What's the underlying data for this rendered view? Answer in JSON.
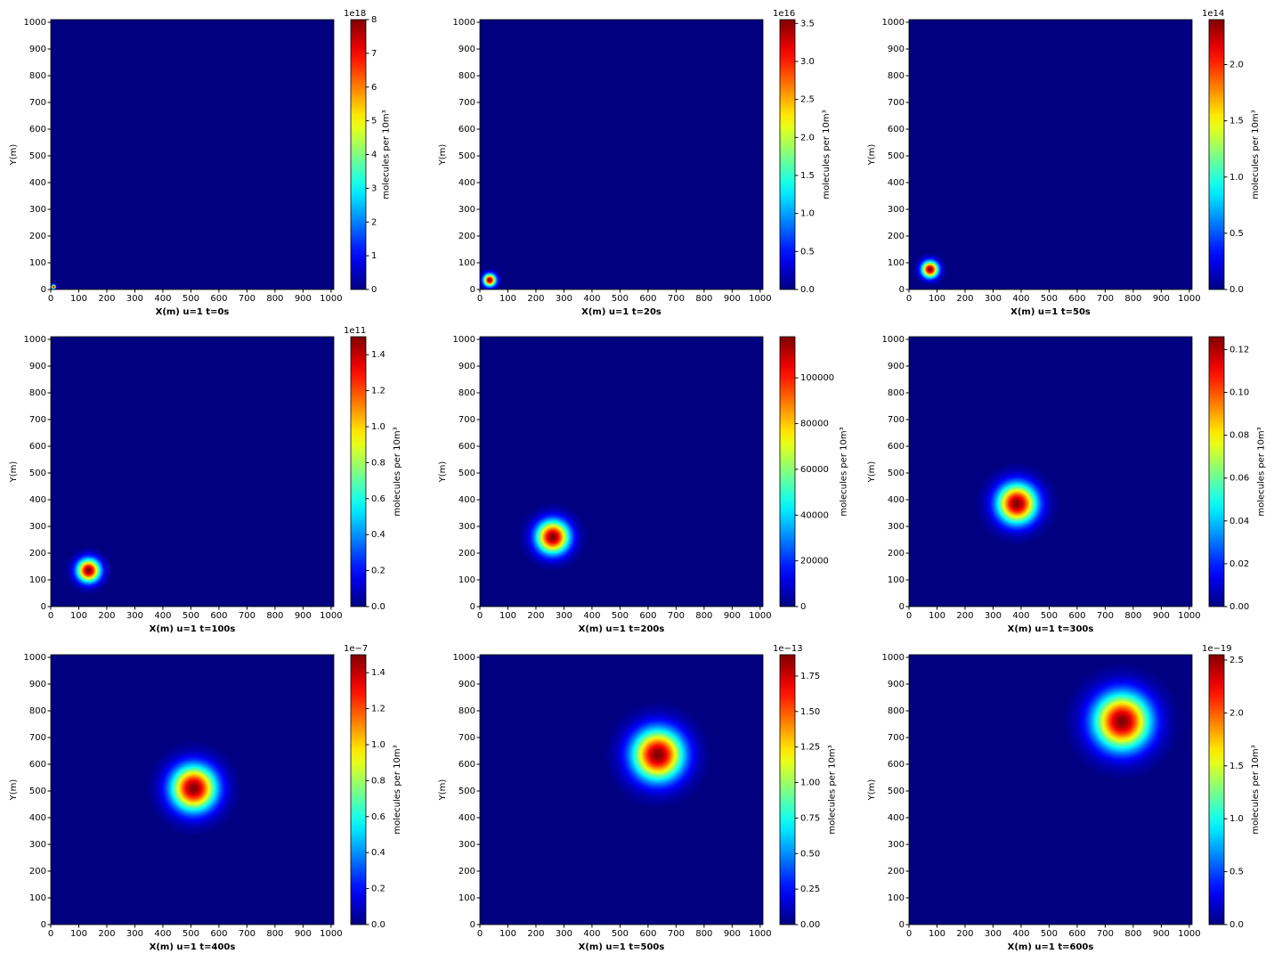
{
  "chart_data": [
    {
      "type": "heatmap",
      "xlabel": "X(m) u=1 t=0s",
      "ylabel": "Y(m)",
      "xlim": [
        0,
        1010
      ],
      "ylim": [
        0,
        1010
      ],
      "xticks": [
        0,
        100,
        200,
        300,
        400,
        500,
        600,
        700,
        800,
        900,
        1000
      ],
      "yticks": [
        0,
        100,
        200,
        300,
        400,
        500,
        600,
        700,
        800,
        900,
        1000
      ],
      "colorbar_label": "molecules per 10m³",
      "colorbar_offset": "1e18",
      "clim": [
        0,
        8
      ],
      "cticks": [
        0,
        1,
        2,
        3,
        4,
        5,
        6,
        7,
        8
      ],
      "plume": {
        "x": 10,
        "y": 10,
        "sigma": 5,
        "peak": 8
      }
    },
    {
      "type": "heatmap",
      "xlabel": "X(m) u=1 t=20s",
      "ylabel": "Y(m)",
      "xlim": [
        0,
        1010
      ],
      "ylim": [
        0,
        1010
      ],
      "xticks": [
        0,
        100,
        200,
        300,
        400,
        500,
        600,
        700,
        800,
        900,
        1000
      ],
      "yticks": [
        0,
        100,
        200,
        300,
        400,
        500,
        600,
        700,
        800,
        900,
        1000
      ],
      "colorbar_label": "molecules per 10m³",
      "colorbar_offset": "1e16",
      "clim": [
        0,
        3.55
      ],
      "cticks": [
        {
          "value": 0,
          "label": "0.0"
        },
        0.5,
        {
          "value": 1,
          "label": "1.0"
        },
        1.5,
        {
          "value": 2,
          "label": "2.0"
        },
        2.5,
        {
          "value": 3,
          "label": "3.0"
        },
        3.5
      ],
      "plume": {
        "x": 35,
        "y": 35,
        "sigma": 15,
        "peak": 3.55
      }
    },
    {
      "type": "heatmap",
      "xlabel": "X(m) u=1 t=50s",
      "ylabel": "Y(m)",
      "xlim": [
        0,
        1010
      ],
      "ylim": [
        0,
        1010
      ],
      "xticks": [
        0,
        100,
        200,
        300,
        400,
        500,
        600,
        700,
        800,
        900,
        1000
      ],
      "yticks": [
        0,
        100,
        200,
        300,
        400,
        500,
        600,
        700,
        800,
        900,
        1000
      ],
      "colorbar_label": "molecules per 10m³",
      "colorbar_offset": "1e14",
      "clim": [
        0,
        2.4
      ],
      "cticks": [
        {
          "value": 0,
          "label": "0.0"
        },
        0.5,
        {
          "value": 1,
          "label": "1.0"
        },
        1.5,
        {
          "value": 2,
          "label": "2.0"
        }
      ],
      "plume": {
        "x": 75,
        "y": 75,
        "sigma": 20,
        "peak": 2.4
      }
    },
    {
      "type": "heatmap",
      "xlabel": "X(m) u=1 t=100s",
      "ylabel": "Y(m)",
      "xlim": [
        0,
        1010
      ],
      "ylim": [
        0,
        1010
      ],
      "xticks": [
        0,
        100,
        200,
        300,
        400,
        500,
        600,
        700,
        800,
        900,
        1000
      ],
      "yticks": [
        0,
        100,
        200,
        300,
        400,
        500,
        600,
        700,
        800,
        900,
        1000
      ],
      "colorbar_label": "molecules per 10m³",
      "colorbar_offset": "1e11",
      "clim": [
        0,
        1.5
      ],
      "cticks": [
        {
          "value": 0,
          "label": "0.0"
        },
        0.2,
        0.4,
        0.6,
        0.8,
        {
          "value": 1,
          "label": "1.0"
        },
        1.2,
        1.4
      ],
      "plume": {
        "x": 135,
        "y": 135,
        "sigma": 28,
        "peak": 1.5
      }
    },
    {
      "type": "heatmap",
      "xlabel": "X(m) u=1 t=200s",
      "ylabel": "Y(m)",
      "xlim": [
        0,
        1010
      ],
      "ylim": [
        0,
        1010
      ],
      "xticks": [
        0,
        100,
        200,
        300,
        400,
        500,
        600,
        700,
        800,
        900,
        1000
      ],
      "yticks": [
        0,
        100,
        200,
        300,
        400,
        500,
        600,
        700,
        800,
        900,
        1000
      ],
      "colorbar_label": "molecules per 10m³",
      "clim": [
        0,
        118000
      ],
      "cticks": [
        0,
        20000,
        40000,
        60000,
        80000,
        100000
      ],
      "plume": {
        "x": 260,
        "y": 260,
        "sigma": 40,
        "peak": 118000
      }
    },
    {
      "type": "heatmap",
      "xlabel": "X(m) u=1 t=300s",
      "ylabel": "Y(m)",
      "xlim": [
        0,
        1010
      ],
      "ylim": [
        0,
        1010
      ],
      "xticks": [
        0,
        100,
        200,
        300,
        400,
        500,
        600,
        700,
        800,
        900,
        1000
      ],
      "yticks": [
        0,
        100,
        200,
        300,
        400,
        500,
        600,
        700,
        800,
        900,
        1000
      ],
      "colorbar_label": "molecules per 10m³",
      "clim": [
        0,
        0.126
      ],
      "cticks": [
        {
          "value": 0,
          "label": "0.00"
        },
        0.02,
        0.04,
        0.06,
        0.08,
        {
          "value": 0.1,
          "label": "0.10"
        },
        0.12
      ],
      "plume": {
        "x": 385,
        "y": 385,
        "sigma": 48,
        "peak": 0.126
      }
    },
    {
      "type": "heatmap",
      "xlabel": "X(m) u=1 t=400s",
      "ylabel": "Y(m)",
      "xlim": [
        0,
        1010
      ],
      "ylim": [
        0,
        1010
      ],
      "xticks": [
        0,
        100,
        200,
        300,
        400,
        500,
        600,
        700,
        800,
        900,
        1000
      ],
      "yticks": [
        0,
        100,
        200,
        300,
        400,
        500,
        600,
        700,
        800,
        900,
        1000
      ],
      "colorbar_label": "molecules per 10m³",
      "colorbar_offset": "1e−7",
      "clim": [
        0,
        1.5
      ],
      "cticks": [
        {
          "value": 0,
          "label": "0.0"
        },
        0.2,
        0.4,
        0.6,
        0.8,
        {
          "value": 1,
          "label": "1.0"
        },
        1.2,
        1.4
      ],
      "plume": {
        "x": 510,
        "y": 510,
        "sigma": 55,
        "peak": 1.5
      }
    },
    {
      "type": "heatmap",
      "xlabel": "X(m) u=1 t=500s",
      "ylabel": "Y(m)",
      "xlim": [
        0,
        1010
      ],
      "ylim": [
        0,
        1010
      ],
      "xticks": [
        0,
        100,
        200,
        300,
        400,
        500,
        600,
        700,
        800,
        900,
        1000
      ],
      "yticks": [
        0,
        100,
        200,
        300,
        400,
        500,
        600,
        700,
        800,
        900,
        1000
      ],
      "colorbar_label": "molecules per 10m³",
      "colorbar_offset": "1e−13",
      "clim": [
        0,
        1.9
      ],
      "cticks": [
        {
          "value": 0,
          "label": "0.00"
        },
        0.25,
        {
          "value": 0.5,
          "label": "0.50"
        },
        0.75,
        {
          "value": 1,
          "label": "1.00"
        },
        1.25,
        {
          "value": 1.5,
          "label": "1.50"
        },
        1.75
      ],
      "plume": {
        "x": 635,
        "y": 635,
        "sigma": 62,
        "peak": 1.9
      }
    },
    {
      "type": "heatmap",
      "xlabel": "X(m) u=1 t=600s",
      "ylabel": "Y(m)",
      "xlim": [
        0,
        1010
      ],
      "ylim": [
        0,
        1010
      ],
      "xticks": [
        0,
        100,
        200,
        300,
        400,
        500,
        600,
        700,
        800,
        900,
        1000
      ],
      "yticks": [
        0,
        100,
        200,
        300,
        400,
        500,
        600,
        700,
        800,
        900,
        1000
      ],
      "colorbar_label": "molecules per 10m³",
      "colorbar_offset": "1e−19",
      "clim": [
        0,
        2.55
      ],
      "cticks": [
        {
          "value": 0,
          "label": "0.0"
        },
        0.5,
        {
          "value": 1,
          "label": "1.0"
        },
        1.5,
        {
          "value": 2,
          "label": "2.0"
        },
        2.5
      ],
      "plume": {
        "x": 760,
        "y": 760,
        "sigma": 68,
        "peak": 2.55
      }
    }
  ]
}
